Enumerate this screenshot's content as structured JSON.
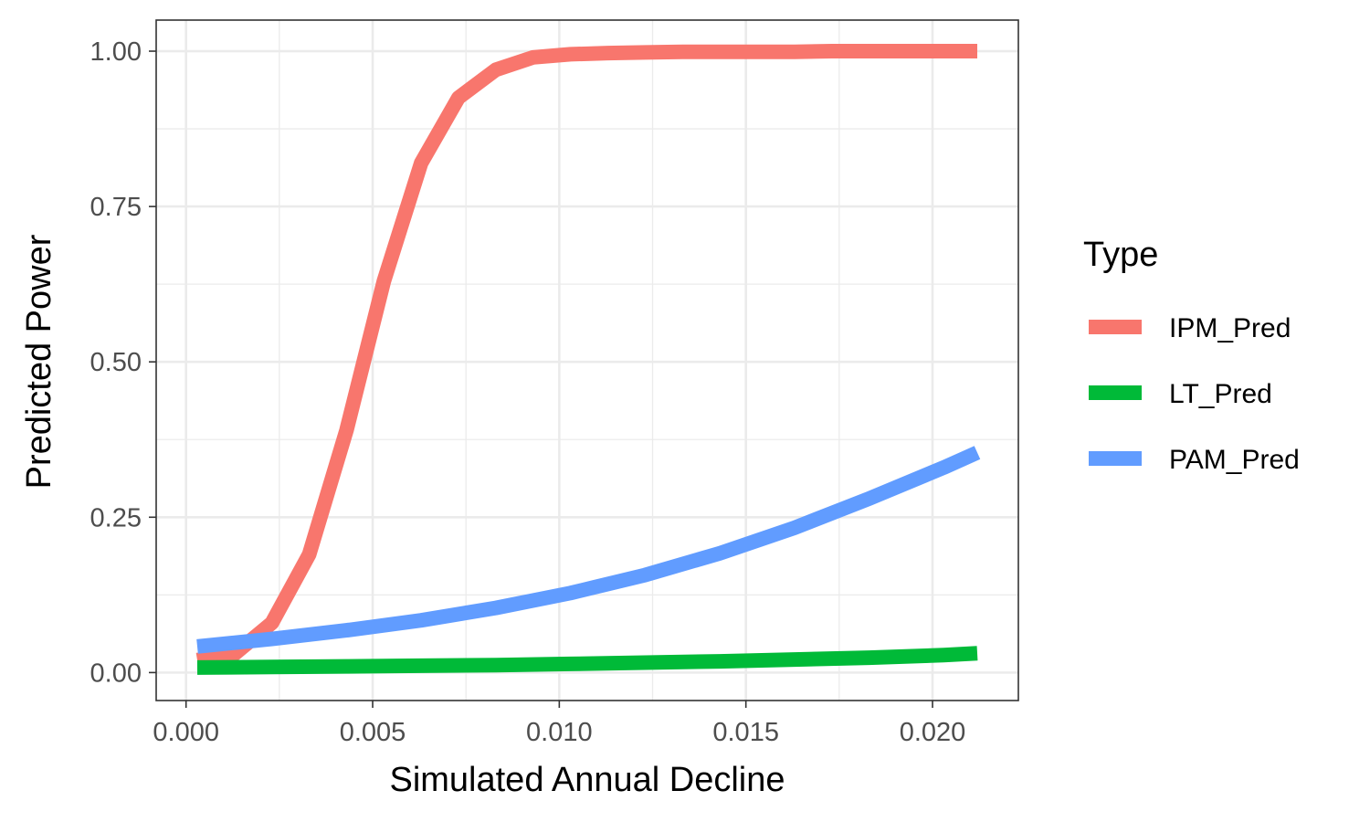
{
  "chart_data": {
    "type": "line",
    "xlabel": "Simulated Annual Decline",
    "ylabel": "Predicted Power",
    "xlim": [
      -0.0008,
      0.0223
    ],
    "ylim": [
      -0.045,
      1.05
    ],
    "x_ticks": [
      0.0,
      0.005,
      0.01,
      0.015,
      0.02
    ],
    "x_tick_labels": [
      "0.000",
      "0.005",
      "0.010",
      "0.015",
      "0.020"
    ],
    "y_ticks": [
      0.0,
      0.25,
      0.5,
      0.75,
      1.0
    ],
    "y_tick_labels": [
      "0.00",
      "0.25",
      "0.50",
      "0.75",
      "1.00"
    ],
    "grid": true,
    "legend": {
      "title": "Type",
      "position": "right"
    },
    "series": [
      {
        "name": "IPM_Pred",
        "color": "#F8766D",
        "x": [
          0.0003,
          0.0013,
          0.0023,
          0.0033,
          0.0043,
          0.0053,
          0.0063,
          0.0073,
          0.0083,
          0.0093,
          0.0103,
          0.0113,
          0.0123,
          0.0133,
          0.0143,
          0.0153,
          0.0163,
          0.0173,
          0.0183,
          0.0193,
          0.0203,
          0.0212
        ],
        "values": [
          0.02,
          0.03,
          0.08,
          0.19,
          0.39,
          0.63,
          0.82,
          0.925,
          0.97,
          0.99,
          0.995,
          0.997,
          0.998,
          0.999,
          0.999,
          0.999,
          0.999,
          1.0,
          1.0,
          1.0,
          1.0,
          1.0
        ]
      },
      {
        "name": "LT_Pred",
        "color": "#00BA38",
        "x": [
          0.0003,
          0.0023,
          0.0043,
          0.0063,
          0.0083,
          0.0103,
          0.0123,
          0.0143,
          0.0163,
          0.0183,
          0.0203,
          0.0212
        ],
        "values": [
          0.008,
          0.009,
          0.01,
          0.011,
          0.012,
          0.014,
          0.016,
          0.018,
          0.021,
          0.024,
          0.028,
          0.031
        ]
      },
      {
        "name": "PAM_Pred",
        "color": "#619CFF",
        "x": [
          0.0003,
          0.0023,
          0.0043,
          0.0063,
          0.0083,
          0.0103,
          0.0123,
          0.0143,
          0.0163,
          0.0183,
          0.0203,
          0.0212
        ],
        "values": [
          0.042,
          0.054,
          0.068,
          0.084,
          0.104,
          0.128,
          0.157,
          0.192,
          0.233,
          0.28,
          0.33,
          0.354
        ]
      }
    ]
  }
}
